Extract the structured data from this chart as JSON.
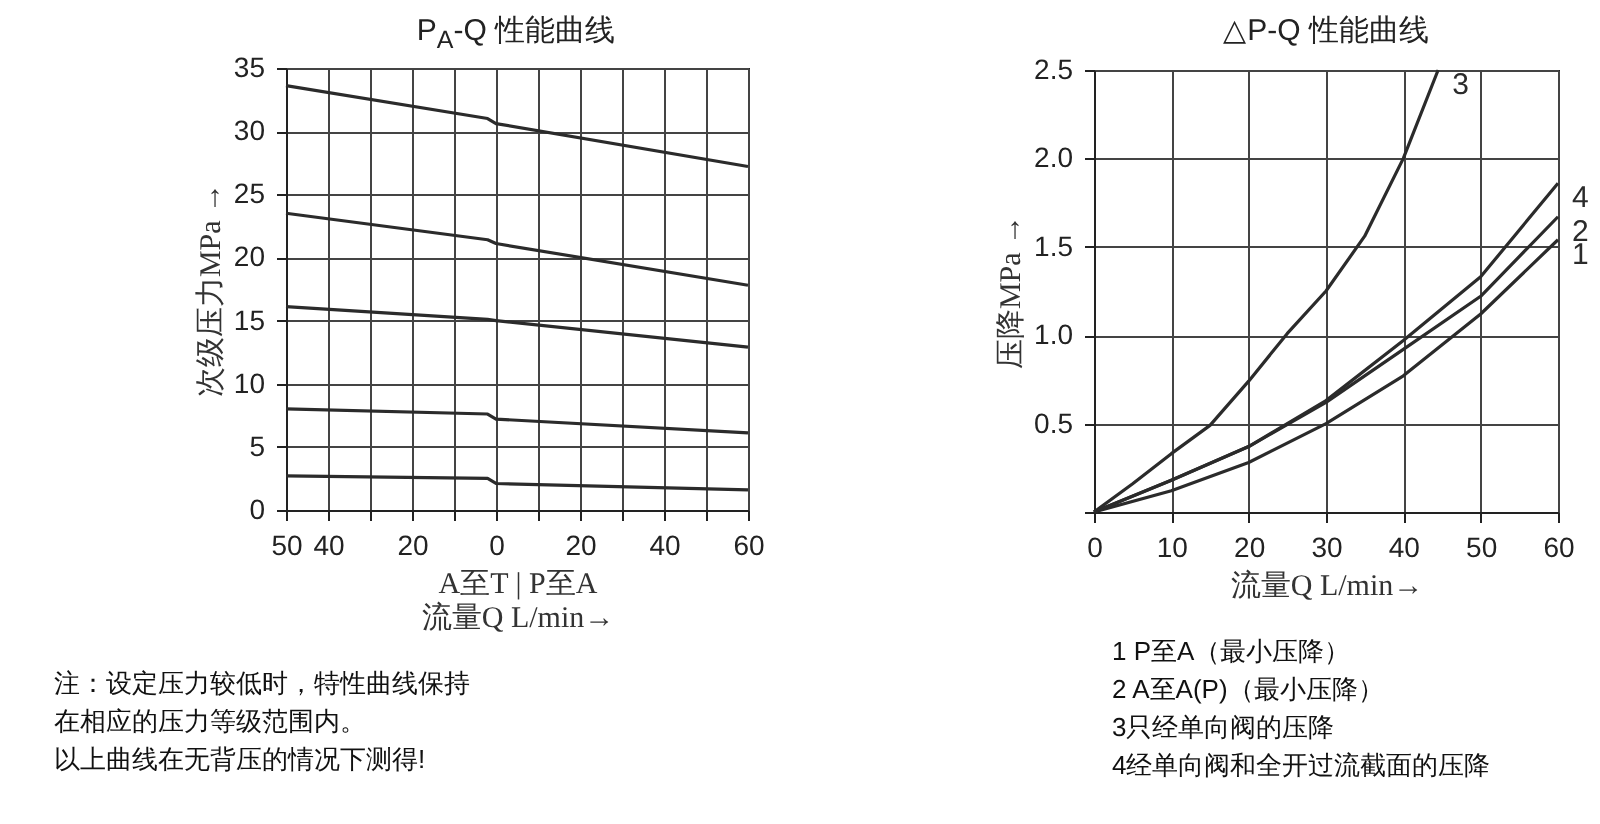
{
  "chart_data": [
    {
      "type": "line",
      "title": "P$_{A}$-Q 性能曲线",
      "xlabel": "A至T  |  P至A\n流量Q  L/min→",
      "ylabel": "次级压力MPa →",
      "xlim": [
        -50,
        60
      ],
      "ylim": [
        0,
        35
      ],
      "xticks": [
        {
          "value": -50,
          "label": "50"
        },
        {
          "value": -40,
          "label": "40"
        },
        {
          "value": -30,
          "label": null
        },
        {
          "value": -20,
          "label": "20"
        },
        {
          "value": -10,
          "label": null
        },
        0,
        {
          "value": 10,
          "label": null
        },
        20,
        {
          "value": 30,
          "label": null
        },
        40,
        {
          "value": 50,
          "label": null
        },
        60
      ],
      "yticks": [
        0,
        5,
        10,
        15,
        20,
        25,
        30,
        35
      ],
      "grid": true,
      "x": [
        -50,
        -2,
        0,
        60
      ],
      "series": [
        {
          "color": "#2b2b2b",
          "values": [
            33.6,
            31.0,
            30.6,
            27.2
          ]
        },
        {
          "color": "#2b2b2b",
          "values": [
            23.5,
            21.4,
            21.1,
            17.8
          ]
        },
        {
          "color": "#2b2b2b",
          "values": [
            16.1,
            15.1,
            15.0,
            12.9
          ]
        },
        {
          "color": "#2b2b2b",
          "values": [
            8.0,
            7.6,
            7.2,
            6.1
          ]
        },
        {
          "color": "#2b2b2b",
          "values": [
            2.7,
            2.5,
            2.1,
            1.6
          ]
        }
      ],
      "annotations": [
        "注：设定压力较低时，特性曲线保持",
        "在相应的压力等级范围内。",
        "以上曲线在无背压的情况下测得!"
      ]
    },
    {
      "type": "line",
      "title": "△P-Q 性能曲线",
      "xlabel": "流量Q  L/min→",
      "ylabel": "压降MPa →",
      "xlim": [
        0,
        60
      ],
      "ylim": [
        0,
        2.5
      ],
      "xticks": [
        0,
        10,
        20,
        30,
        40,
        50,
        60
      ],
      "yticks": [
        {
          "value": 0,
          "label": null
        },
        0.5,
        {
          "value": 1,
          "label": "1.0"
        },
        1.5,
        {
          "value": 2,
          "label": "2.0"
        },
        2.5
      ],
      "grid": true,
      "series": [
        {
          "name": "1",
          "color": "#2b2b2b",
          "x": [
            0,
            10,
            20,
            30,
            40,
            50,
            60
          ],
          "values": [
            0,
            0.12,
            0.28,
            0.5,
            0.77,
            1.12,
            1.54
          ]
        },
        {
          "name": "2",
          "color": "#2b2b2b",
          "x": [
            0,
            10,
            20,
            30,
            40,
            50,
            60
          ],
          "values": [
            0,
            0.18,
            0.37,
            0.62,
            0.92,
            1.22,
            1.67
          ]
        },
        {
          "name": "3",
          "color": "#2b2b2b",
          "x": [
            0,
            5,
            10,
            15,
            20,
            25,
            30,
            35,
            40,
            44.5
          ],
          "values": [
            0,
            0.16,
            0.33,
            0.49,
            0.74,
            1.01,
            1.25,
            1.56,
            2.0,
            2.5
          ]
        },
        {
          "name": "4",
          "color": "#2b2b2b",
          "x": [
            0,
            10,
            20,
            30,
            40,
            50,
            60
          ],
          "values": [
            0,
            0.18,
            0.37,
            0.63,
            0.97,
            1.33,
            1.86
          ]
        }
      ],
      "annotations": [
        "1  P至A（最小压降）",
        "2  A至A(P)（最小压降）",
        "3只经单向阀的压降",
        "4经单向阀和全开过流截面的压降"
      ]
    }
  ]
}
